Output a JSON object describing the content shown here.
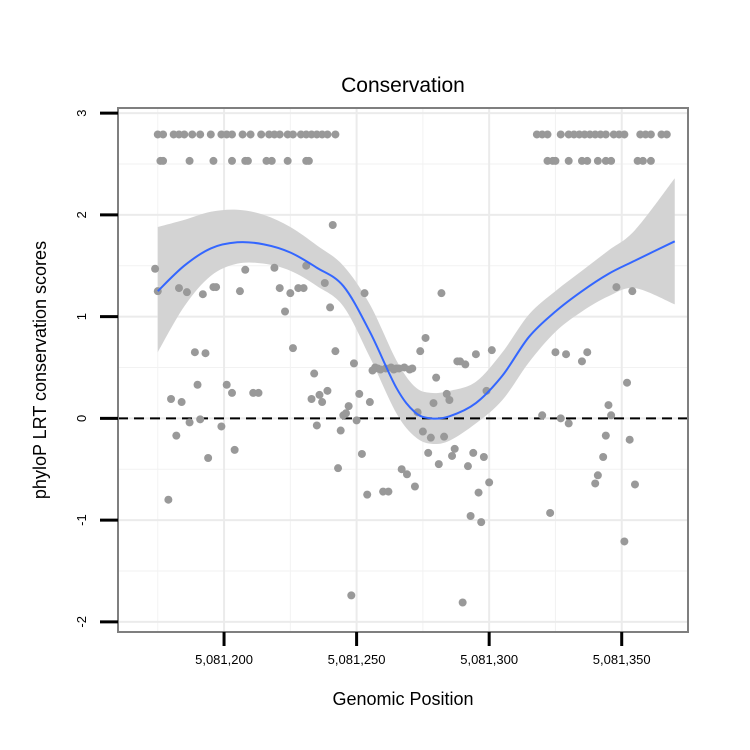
{
  "chart_data": {
    "type": "scatter",
    "title": "Conservation",
    "xlabel": "Genomic Position",
    "ylabel": "phyloP LRT conservation scores",
    "xlim": [
      5081160,
      5081375
    ],
    "ylim": [
      -2.1,
      3.05
    ],
    "x_ticks": [
      {
        "value": 5081200,
        "label": "5,081,200"
      },
      {
        "value": 5081250,
        "label": "5,081,250"
      },
      {
        "value": 5081300,
        "label": "5,081,300"
      },
      {
        "value": 5081350,
        "label": "5,081,350"
      }
    ],
    "y_ticks": [
      {
        "value": 3,
        "label": "3"
      },
      {
        "value": 2,
        "label": "2"
      },
      {
        "value": 1,
        "label": "1"
      },
      {
        "value": 0,
        "label": "0"
      },
      {
        "value": -1,
        "label": "-1"
      },
      {
        "value": -2,
        "label": "-2"
      }
    ],
    "grid": true,
    "reference_line": {
      "y": 0,
      "style": "dashed"
    },
    "colors": {
      "points": "#999999",
      "smooth": "#3366FF",
      "band": "#D3D3D3",
      "frame": "#7f7f7f"
    },
    "smooth": {
      "x": [
        5081175,
        5081185,
        5081195,
        5081205,
        5081215,
        5081225,
        5081235,
        5081245,
        5081255,
        5081265,
        5081272,
        5081278,
        5081285,
        5081295,
        5081305,
        5081315,
        5081325,
        5081335,
        5081345,
        5081355,
        5081370
      ],
      "y": [
        1.25,
        1.5,
        1.67,
        1.73,
        1.71,
        1.63,
        1.48,
        1.3,
        0.85,
        0.3,
        0.06,
        0.0,
        0.02,
        0.15,
        0.42,
        0.8,
        1.05,
        1.25,
        1.42,
        1.55,
        1.74
      ],
      "lower": [
        0.65,
        1.1,
        1.4,
        1.52,
        1.52,
        1.45,
        1.3,
        1.1,
        0.6,
        0.05,
        -0.18,
        -0.25,
        -0.22,
        -0.05,
        0.18,
        0.55,
        0.85,
        1.05,
        1.2,
        1.28,
        1.12
      ],
      "upper": [
        1.88,
        1.95,
        2.03,
        2.05,
        2.0,
        1.88,
        1.7,
        1.5,
        1.12,
        0.57,
        0.31,
        0.25,
        0.27,
        0.36,
        0.65,
        1.02,
        1.25,
        1.45,
        1.65,
        1.85,
        2.36
      ]
    },
    "points": [
      [
        5081175,
        2.79
      ],
      [
        5081177,
        2.79
      ],
      [
        5081181,
        2.79
      ],
      [
        5081183,
        2.79
      ],
      [
        5081185,
        2.79
      ],
      [
        5081188,
        2.79
      ],
      [
        5081191,
        2.79
      ],
      [
        5081195,
        2.79
      ],
      [
        5081199,
        2.79
      ],
      [
        5081201,
        2.79
      ],
      [
        5081203,
        2.79
      ],
      [
        5081207,
        2.79
      ],
      [
        5081210,
        2.79
      ],
      [
        5081214,
        2.79
      ],
      [
        5081217,
        2.79
      ],
      [
        5081219,
        2.79
      ],
      [
        5081221,
        2.79
      ],
      [
        5081224,
        2.79
      ],
      [
        5081226,
        2.79
      ],
      [
        5081229,
        2.79
      ],
      [
        5081231,
        2.79
      ],
      [
        5081233,
        2.79
      ],
      [
        5081235,
        2.79
      ],
      [
        5081237,
        2.79
      ],
      [
        5081239,
        2.79
      ],
      [
        5081242,
        2.79
      ],
      [
        5081176,
        2.53
      ],
      [
        5081177,
        2.53
      ],
      [
        5081187,
        2.53
      ],
      [
        5081196,
        2.53
      ],
      [
        5081203,
        2.53
      ],
      [
        5081208,
        2.53
      ],
      [
        5081209,
        2.53
      ],
      [
        5081216,
        2.53
      ],
      [
        5081218,
        2.53
      ],
      [
        5081224,
        2.53
      ],
      [
        5081231,
        2.53
      ],
      [
        5081232,
        2.53
      ],
      [
        5081318,
        2.79
      ],
      [
        5081320,
        2.79
      ],
      [
        5081322,
        2.79
      ],
      [
        5081327,
        2.79
      ],
      [
        5081330,
        2.79
      ],
      [
        5081332,
        2.79
      ],
      [
        5081334,
        2.79
      ],
      [
        5081336,
        2.79
      ],
      [
        5081338,
        2.79
      ],
      [
        5081340,
        2.79
      ],
      [
        5081342,
        2.79
      ],
      [
        5081344,
        2.79
      ],
      [
        5081347,
        2.79
      ],
      [
        5081349,
        2.79
      ],
      [
        5081351,
        2.79
      ],
      [
        5081357,
        2.79
      ],
      [
        5081359,
        2.79
      ],
      [
        5081361,
        2.79
      ],
      [
        5081365,
        2.79
      ],
      [
        5081367,
        2.79
      ],
      [
        5081322,
        2.53
      ],
      [
        5081324,
        2.53
      ],
      [
        5081325,
        2.53
      ],
      [
        5081330,
        2.53
      ],
      [
        5081335,
        2.53
      ],
      [
        5081337,
        2.53
      ],
      [
        5081341,
        2.53
      ],
      [
        5081344,
        2.53
      ],
      [
        5081346,
        2.53
      ],
      [
        5081356,
        2.53
      ],
      [
        5081358,
        2.53
      ],
      [
        5081361,
        2.53
      ],
      [
        5081174,
        1.47
      ],
      [
        5081175,
        1.25
      ],
      [
        5081179,
        -0.8
      ],
      [
        5081180,
        0.19
      ],
      [
        5081182,
        -0.17
      ],
      [
        5081183,
        1.28
      ],
      [
        5081184,
        0.16
      ],
      [
        5081186,
        1.24
      ],
      [
        5081187,
        -0.04
      ],
      [
        5081189,
        0.65
      ],
      [
        5081190,
        0.33
      ],
      [
        5081191,
        -0.01
      ],
      [
        5081192,
        1.22
      ],
      [
        5081193,
        0.64
      ],
      [
        5081194,
        -0.39
      ],
      [
        5081196,
        1.29
      ],
      [
        5081197,
        1.29
      ],
      [
        5081199,
        -0.08
      ],
      [
        5081201,
        0.33
      ],
      [
        5081203,
        0.25
      ],
      [
        5081204,
        -0.31
      ],
      [
        5081206,
        1.25
      ],
      [
        5081208,
        1.46
      ],
      [
        5081211,
        0.25
      ],
      [
        5081213,
        0.25
      ],
      [
        5081219,
        1.48
      ],
      [
        5081221,
        1.28
      ],
      [
        5081223,
        1.05
      ],
      [
        5081225,
        1.23
      ],
      [
        5081226,
        0.69
      ],
      [
        5081228,
        1.28
      ],
      [
        5081230,
        1.28
      ],
      [
        5081231,
        1.5
      ],
      [
        5081233,
        0.19
      ],
      [
        5081234,
        0.44
      ],
      [
        5081235,
        -0.07
      ],
      [
        5081236,
        0.23
      ],
      [
        5081237,
        0.16
      ],
      [
        5081238,
        1.33
      ],
      [
        5081239,
        0.27
      ],
      [
        5081240,
        1.09
      ],
      [
        5081241,
        1.9
      ],
      [
        5081242,
        0.66
      ],
      [
        5081243,
        -0.49
      ],
      [
        5081244,
        -0.12
      ],
      [
        5081245,
        0.03
      ],
      [
        5081246,
        0.05
      ],
      [
        5081247,
        0.12
      ],
      [
        5081248,
        -1.74
      ],
      [
        5081249,
        0.54
      ],
      [
        5081250,
        -0.02
      ],
      [
        5081251,
        0.24
      ],
      [
        5081252,
        -0.35
      ],
      [
        5081253,
        1.23
      ],
      [
        5081254,
        -0.75
      ],
      [
        5081255,
        0.16
      ],
      [
        5081256,
        0.47
      ],
      [
        5081257,
        0.5
      ],
      [
        5081258,
        0.49
      ],
      [
        5081259,
        0.48
      ],
      [
        5081260,
        -0.72
      ],
      [
        5081261,
        0.49
      ],
      [
        5081262,
        -0.72
      ],
      [
        5081263,
        0.5
      ],
      [
        5081264,
        0.48
      ],
      [
        5081265,
        0.49
      ],
      [
        5081266,
        0.49
      ],
      [
        5081267,
        -0.5
      ],
      [
        5081268,
        0.5
      ],
      [
        5081269,
        -0.55
      ],
      [
        5081270,
        0.48
      ],
      [
        5081271,
        0.49
      ],
      [
        5081272,
        -0.67
      ],
      [
        5081273,
        0.06
      ],
      [
        5081274,
        0.66
      ],
      [
        5081275,
        -0.13
      ],
      [
        5081276,
        0.79
      ],
      [
        5081277,
        -0.34
      ],
      [
        5081278,
        -0.19
      ],
      [
        5081279,
        0.15
      ],
      [
        5081280,
        0.4
      ],
      [
        5081281,
        -0.45
      ],
      [
        5081282,
        1.23
      ],
      [
        5081283,
        -0.18
      ],
      [
        5081284,
        0.24
      ],
      [
        5081285,
        0.18
      ],
      [
        5081286,
        -0.37
      ],
      [
        5081287,
        -0.3
      ],
      [
        5081288,
        0.56
      ],
      [
        5081289,
        0.56
      ],
      [
        5081290,
        -1.81
      ],
      [
        5081291,
        0.53
      ],
      [
        5081292,
        -0.47
      ],
      [
        5081293,
        -0.96
      ],
      [
        5081294,
        -0.34
      ],
      [
        5081295,
        0.63
      ],
      [
        5081296,
        -0.73
      ],
      [
        5081297,
        -1.02
      ],
      [
        5081298,
        -0.38
      ],
      [
        5081299,
        0.27
      ],
      [
        5081300,
        -0.63
      ],
      [
        5081301,
        0.67
      ],
      [
        5081320,
        0.03
      ],
      [
        5081323,
        -0.93
      ],
      [
        5081325,
        0.65
      ],
      [
        5081327,
        0.0
      ],
      [
        5081329,
        0.63
      ],
      [
        5081330,
        -0.05
      ],
      [
        5081335,
        0.56
      ],
      [
        5081337,
        0.65
      ],
      [
        5081340,
        -0.64
      ],
      [
        5081341,
        -0.56
      ],
      [
        5081343,
        -0.38
      ],
      [
        5081344,
        -0.17
      ],
      [
        5081345,
        0.13
      ],
      [
        5081346,
        0.03
      ],
      [
        5081348,
        1.29
      ],
      [
        5081351,
        -1.21
      ],
      [
        5081352,
        0.35
      ],
      [
        5081353,
        -0.21
      ],
      [
        5081354,
        1.25
      ],
      [
        5081355,
        -0.65
      ]
    ]
  }
}
